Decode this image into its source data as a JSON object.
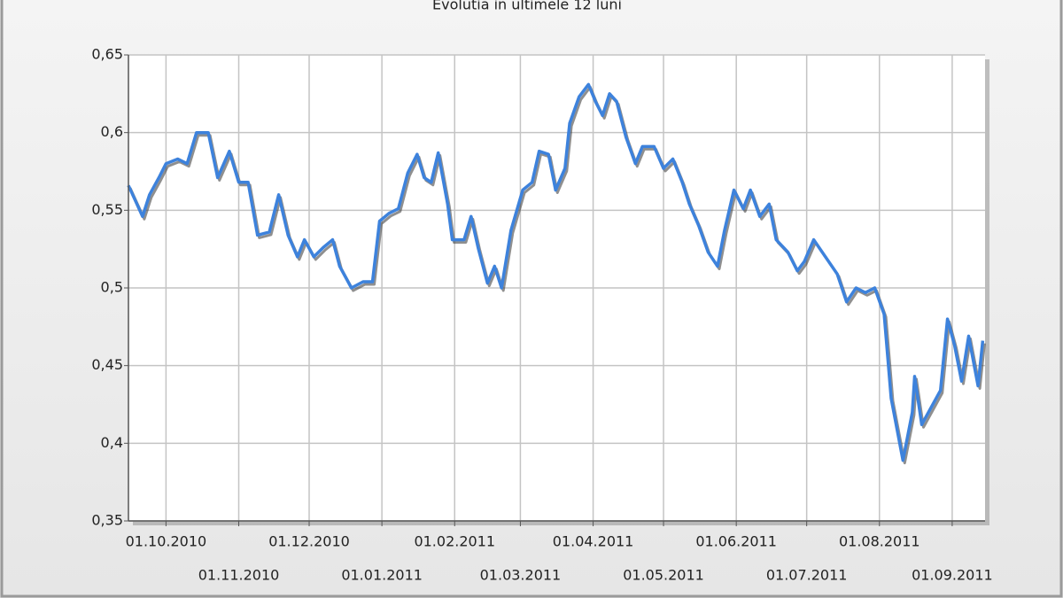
{
  "chart_data": {
    "type": "line",
    "title": "Evolutia in ultimele 12 luni",
    "x": [
      "2010-09-15",
      "2010-09-21",
      "2010-09-24",
      "2010-09-28",
      "2010-10-01",
      "2010-10-06",
      "2010-10-10",
      "2010-10-14",
      "2010-10-19",
      "2010-10-23",
      "2010-10-28",
      "2010-11-01",
      "2010-11-05",
      "2010-11-09",
      "2010-11-14",
      "2010-11-18",
      "2010-11-22",
      "2010-11-26",
      "2010-11-29",
      "2010-12-03",
      "2010-12-07",
      "2010-12-11",
      "2010-12-14",
      "2010-12-19",
      "2010-12-24",
      "2010-12-28",
      "2010-12-31",
      "2011-01-04",
      "2011-01-08",
      "2011-01-12",
      "2011-01-16",
      "2011-01-19",
      "2011-01-22",
      "2011-01-25",
      "2011-01-29",
      "2011-01-31",
      "2011-02-05",
      "2011-02-08",
      "2011-02-11",
      "2011-02-15",
      "2011-02-18",
      "2011-02-21",
      "2011-02-25",
      "2011-03-02",
      "2011-03-06",
      "2011-03-09",
      "2011-03-13",
      "2011-03-16",
      "2011-03-20",
      "2011-03-22",
      "2011-03-26",
      "2011-03-30",
      "2011-04-02",
      "2011-04-05",
      "2011-04-08",
      "2011-04-11",
      "2011-04-15",
      "2011-04-19",
      "2011-04-22",
      "2011-04-27",
      "2011-05-01",
      "2011-05-05",
      "2011-05-09",
      "2011-05-12",
      "2011-05-16",
      "2011-05-20",
      "2011-05-24",
      "2011-05-27",
      "2011-05-31",
      "2011-06-04",
      "2011-06-07",
      "2011-06-11",
      "2011-06-15",
      "2011-06-18",
      "2011-06-23",
      "2011-06-27",
      "2011-06-30",
      "2011-07-04",
      "2011-07-09",
      "2011-07-14",
      "2011-07-18",
      "2011-07-22",
      "2011-07-26",
      "2011-07-30",
      "2011-08-03",
      "2011-08-06",
      "2011-08-11",
      "2011-08-15",
      "2011-08-16",
      "2011-08-19",
      "2011-08-23",
      "2011-08-27",
      "2011-08-30",
      "2011-09-02",
      "2011-09-05",
      "2011-09-08",
      "2011-09-12",
      "2011-09-14"
    ],
    "series": [
      {
        "color": "#3d82dc",
        "values": [
          0.566,
          0.546,
          0.56,
          0.571,
          0.58,
          0.583,
          0.58,
          0.6,
          0.6,
          0.571,
          0.588,
          0.568,
          0.568,
          0.534,
          0.536,
          0.56,
          0.534,
          0.52,
          0.531,
          0.52,
          0.526,
          0.531,
          0.514,
          0.5,
          0.504,
          0.504,
          0.543,
          0.548,
          0.551,
          0.574,
          0.586,
          0.571,
          0.568,
          0.587,
          0.554,
          0.531,
          0.531,
          0.546,
          0.526,
          0.503,
          0.514,
          0.5,
          0.537,
          0.563,
          0.568,
          0.588,
          0.586,
          0.563,
          0.577,
          0.606,
          0.623,
          0.631,
          0.62,
          0.611,
          0.625,
          0.62,
          0.597,
          0.58,
          0.591,
          0.591,
          0.577,
          0.583,
          0.568,
          0.554,
          0.54,
          0.523,
          0.514,
          0.537,
          0.563,
          0.551,
          0.563,
          0.546,
          0.554,
          0.531,
          0.523,
          0.511,
          0.517,
          0.531,
          0.52,
          0.509,
          0.491,
          0.5,
          0.497,
          0.5,
          0.483,
          0.429,
          0.389,
          0.42,
          0.443,
          0.412,
          0.423,
          0.434,
          0.48,
          0.463,
          0.44,
          0.469,
          0.437,
          0.466
        ]
      }
    ],
    "xlim": [
      "2010-09-15",
      "2011-09-15"
    ],
    "xticks": [
      {
        "value": "2010-10-01",
        "label": "01.10.2010"
      },
      {
        "value": "2010-11-01",
        "label": "01.11.2010"
      },
      {
        "value": "2010-12-01",
        "label": "01.12.2010"
      },
      {
        "value": "2011-01-01",
        "label": "01.01.2011"
      },
      {
        "value": "2011-02-01",
        "label": "01.02.2011"
      },
      {
        "value": "2011-03-01",
        "label": "01.03.2011"
      },
      {
        "value": "2011-04-01",
        "label": "01.04.2011"
      },
      {
        "value": "2011-05-01",
        "label": "01.05.2011"
      },
      {
        "value": "2011-06-01",
        "label": "01.06.2011"
      },
      {
        "value": "2011-07-01",
        "label": "01.07.2011"
      },
      {
        "value": "2011-08-01",
        "label": "01.08.2011"
      },
      {
        "value": "2011-09-01",
        "label": "01.09.2011"
      }
    ],
    "ylim": [
      0.35,
      0.65
    ],
    "yticks": [
      {
        "value": 0.35,
        "label": "0,35"
      },
      {
        "value": 0.4,
        "label": "0,4"
      },
      {
        "value": 0.45,
        "label": "0,45"
      },
      {
        "value": 0.5,
        "label": "0,5"
      },
      {
        "value": 0.55,
        "label": "0,55"
      },
      {
        "value": 0.6,
        "label": "0,6"
      },
      {
        "value": 0.65,
        "label": "0,65"
      }
    ],
    "grid": true
  }
}
